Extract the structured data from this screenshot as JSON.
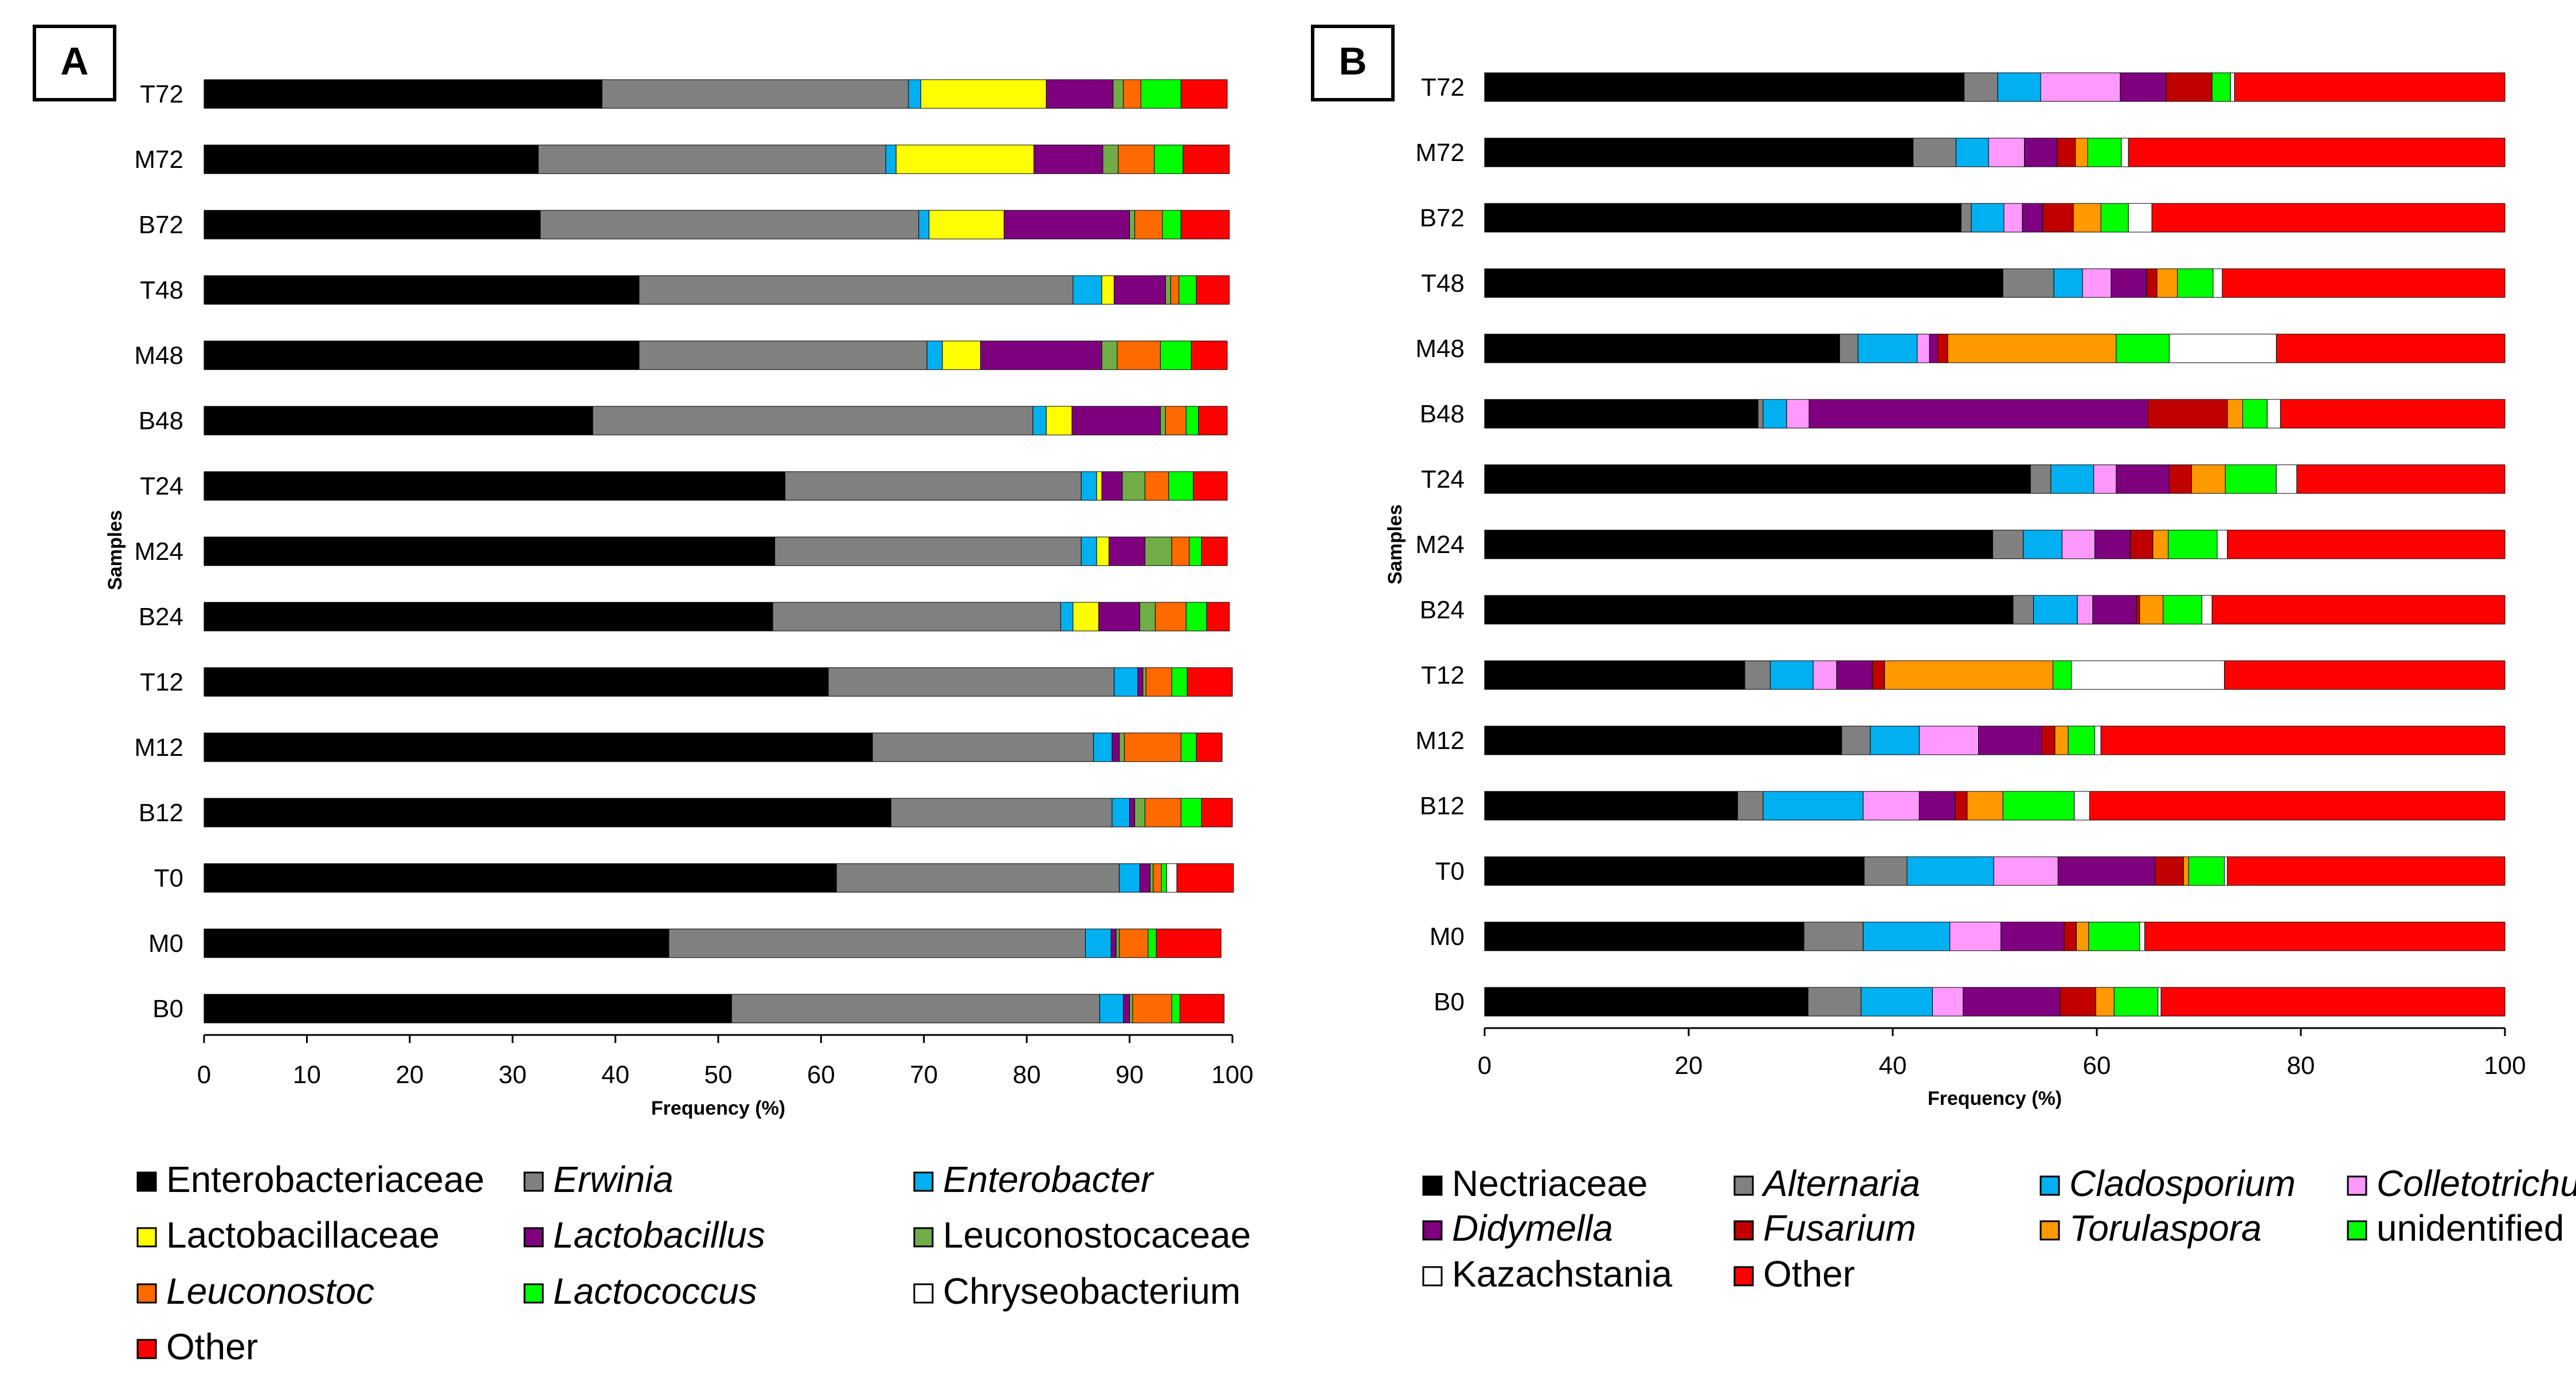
{
  "chart_data": [
    {
      "panel": "A",
      "type": "bar",
      "orientation": "horizontal",
      "stacked": true,
      "xlabel": "Frequency (%)",
      "ylabel": "Samples",
      "xlim": [
        0,
        100
      ],
      "xticks": [
        "0",
        "10",
        "20",
        "30",
        "40",
        "50",
        "60",
        "70",
        "80",
        "90",
        "100"
      ],
      "categories": [
        "T72",
        "M72",
        "B72",
        "T48",
        "M48",
        "B48",
        "T24",
        "M24",
        "B24",
        "T12",
        "M12",
        "B12",
        "T0",
        "M0",
        "B0"
      ],
      "series": [
        {
          "name": "Enterobacteriaceae",
          "italic": false,
          "color": "#000000",
          "values": [
            38.7,
            32.5,
            32.7,
            42.3,
            42.3,
            37.8,
            56.5,
            55.5,
            55.3,
            60.7,
            65.0,
            66.8,
            61.5,
            45.2,
            51.3
          ]
        },
        {
          "name": "Erwinia",
          "italic": true,
          "color": "#808080",
          "values": [
            29.8,
            33.8,
            36.8,
            42.2,
            28.0,
            42.8,
            28.8,
            29.8,
            28.0,
            27.8,
            21.5,
            21.5,
            27.5,
            40.5,
            35.8
          ]
        },
        {
          "name": "Enterobacter",
          "italic": true,
          "color": "#00B0F0",
          "values": [
            1.2,
            1.0,
            1.0,
            2.8,
            1.5,
            1.3,
            1.5,
            1.5,
            1.2,
            2.3,
            1.8,
            1.7,
            2.0,
            2.5,
            2.3
          ]
        },
        {
          "name": "Lactobacillaceae",
          "italic": false,
          "color": "#FFFF00",
          "values": [
            12.2,
            13.4,
            7.3,
            1.2,
            3.7,
            2.5,
            0.5,
            1.2,
            2.5,
            0,
            0,
            0,
            0,
            0,
            0
          ]
        },
        {
          "name": "Lactobacillus",
          "italic": true,
          "color": "#7F007F",
          "values": [
            6.5,
            6.7,
            12.2,
            5.0,
            11.8,
            8.6,
            2.0,
            3.5,
            4.0,
            0.5,
            0.7,
            0.5,
            1.0,
            0.5,
            0.6
          ]
        },
        {
          "name": "Leuconostocaceae",
          "italic": false,
          "color": "#70AD47",
          "values": [
            1.0,
            1.5,
            0.5,
            0.5,
            1.5,
            0.5,
            2.2,
            2.6,
            1.5,
            0.3,
            0.5,
            1.0,
            0.3,
            0.3,
            0.3
          ]
        },
        {
          "name": "Leuconostoc",
          "italic": true,
          "color": "#FF6A00",
          "values": [
            1.7,
            3.5,
            2.7,
            0.8,
            4.2,
            2.0,
            2.3,
            1.7,
            3.0,
            2.5,
            5.5,
            3.5,
            0.8,
            2.8,
            3.8
          ]
        },
        {
          "name": "Lactococcus",
          "italic": true,
          "color": "#00FF00",
          "values": [
            3.9,
            2.8,
            1.8,
            1.7,
            3.0,
            1.2,
            2.4,
            1.2,
            2.0,
            1.5,
            1.5,
            2.0,
            0.5,
            0.8,
            0.8
          ]
        },
        {
          "name": "Chryseobacterium",
          "italic": false,
          "color": "#FFFFFF",
          "values": [
            0,
            0,
            0,
            0,
            0,
            0,
            0,
            0,
            0,
            0,
            0,
            0,
            1.0,
            0,
            0
          ]
        },
        {
          "name": "Other",
          "italic": false,
          "color": "#FF0000",
          "values": [
            4.5,
            4.5,
            4.7,
            3.2,
            3.5,
            2.8,
            3.3,
            2.5,
            2.2,
            4.4,
            2.5,
            3.0,
            5.5,
            6.3,
            4.3
          ]
        }
      ]
    },
    {
      "panel": "B",
      "type": "bar",
      "orientation": "horizontal",
      "stacked": true,
      "xlabel": "Frequency (%)",
      "ylabel": "Samples",
      "xlim": [
        0,
        100
      ],
      "xticks": [
        "0",
        "20",
        "40",
        "60",
        "80",
        "100"
      ],
      "categories": [
        "T72",
        "M72",
        "B72",
        "T48",
        "M48",
        "B48",
        "T24",
        "M24",
        "B24",
        "T12",
        "M12",
        "B12",
        "T0",
        "M0",
        "B0"
      ],
      "series": [
        {
          "name": "Nectriaceae",
          "italic": false,
          "color": "#000000",
          "values": [
            47,
            42,
            46.7,
            50.8,
            34.8,
            26.8,
            53.5,
            49.8,
            51.8,
            25.5,
            35.0,
            24.8,
            37.2,
            31.3,
            31.7
          ]
        },
        {
          "name": "Alternaria",
          "italic": true,
          "color": "#808080",
          "values": [
            3.3,
            4.2,
            1.0,
            5.0,
            1.8,
            0.5,
            2.0,
            3.0,
            2.0,
            2.5,
            2.8,
            2.5,
            4.2,
            5.8,
            5.2
          ]
        },
        {
          "name": "Cladosporium",
          "italic": true,
          "color": "#00B0F0",
          "values": [
            4.2,
            3.2,
            3.2,
            2.8,
            5.8,
            2.3,
            4.2,
            3.8,
            4.3,
            4.2,
            4.8,
            9.8,
            8.5,
            8.5,
            7.0
          ]
        },
        {
          "name": "Colletotrichum",
          "italic": true,
          "color": "#FF99FF",
          "values": [
            7.8,
            3.5,
            1.8,
            2.8,
            1.2,
            2.2,
            2.2,
            3.2,
            1.5,
            2.3,
            5.8,
            5.5,
            6.3,
            5.0,
            3.0
          ]
        },
        {
          "name": "Didymella",
          "italic": true,
          "color": "#7F007F",
          "values": [
            4.5,
            3.2,
            2.0,
            3.5,
            0.8,
            33.2,
            5.2,
            3.5,
            4.3,
            3.5,
            6.2,
            3.5,
            9.5,
            6.2,
            9.5
          ]
        },
        {
          "name": "Fusarium",
          "italic": true,
          "color": "#C00000",
          "values": [
            4.5,
            1.8,
            3.0,
            1.0,
            1.0,
            7.8,
            2.2,
            2.2,
            0.3,
            1.2,
            1.3,
            1.2,
            2.8,
            1.2,
            3.5
          ]
        },
        {
          "name": "Torulaspora",
          "italic": true,
          "color": "#FF9900",
          "values": [
            0,
            1.2,
            2.7,
            2.0,
            16.5,
            1.5,
            3.3,
            1.5,
            2.3,
            16.5,
            1.3,
            3.5,
            0.5,
            1.2,
            1.8
          ]
        },
        {
          "name": "unidentified",
          "italic": false,
          "color": "#00FF00",
          "values": [
            1.8,
            3.3,
            2.7,
            3.5,
            5.2,
            2.4,
            5.0,
            4.8,
            3.8,
            1.8,
            2.6,
            7.0,
            3.5,
            5.0,
            4.3
          ]
        },
        {
          "name": "Kazachstania",
          "italic": false,
          "color": "#FFFFFF",
          "values": [
            0.4,
            0.7,
            2.3,
            0.9,
            10.5,
            1.3,
            2.0,
            1.0,
            1.0,
            15.0,
            0.6,
            1.5,
            0.3,
            0.5,
            0.3
          ]
        },
        {
          "name": "Other",
          "italic": false,
          "color": "#FF0000",
          "values": [
            26.5,
            36.9,
            34.6,
            27.7,
            22.4,
            22.0,
            20.4,
            27.2,
            28.7,
            27.5,
            39.6,
            40.7,
            27.2,
            35.3,
            33.7
          ]
        }
      ]
    }
  ]
}
